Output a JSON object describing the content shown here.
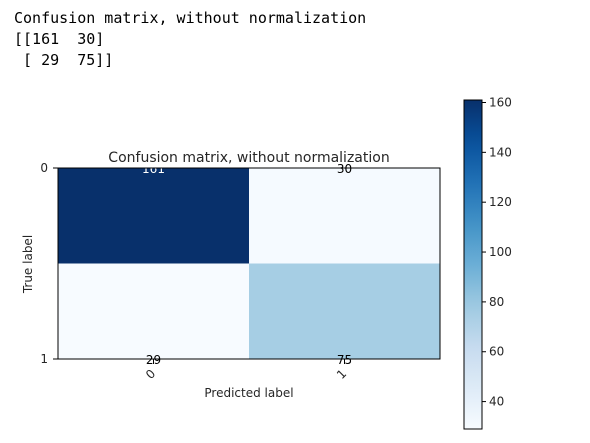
{
  "console": {
    "header": "Confusion matrix, without normalization",
    "lines": [
      "[[161  30]",
      " [ 29  75]]"
    ]
  },
  "chart_data": {
    "type": "heatmap",
    "title": "Confusion matrix, without normalization",
    "xlabel": "Predicted label",
    "ylabel": "True label",
    "x_ticks": [
      "0",
      "1"
    ],
    "y_ticks": [
      "0",
      "1"
    ],
    "matrix": [
      [
        161,
        30
      ],
      [
        29,
        75
      ]
    ],
    "colormap": "Blues",
    "colorbar": {
      "min": 29,
      "max": 161,
      "ticks": [
        40,
        60,
        80,
        100,
        120,
        140,
        160
      ],
      "placement": "right"
    },
    "grid": false
  }
}
